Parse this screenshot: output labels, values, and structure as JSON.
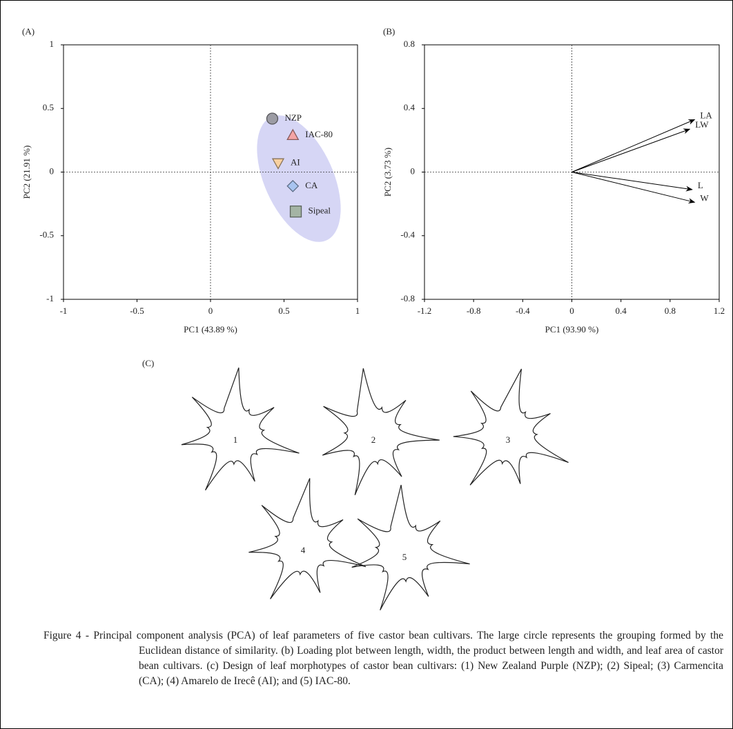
{
  "chart_data": [
    {
      "type": "scatter",
      "panel": "(A)",
      "xlabel": "PC1 (43.89 %)",
      "ylabel": "PC2 (21.91 %)",
      "xlim": [
        -1,
        1
      ],
      "ylim": [
        -1,
        1
      ],
      "xticks": [
        -1,
        -0.5,
        0,
        0.5,
        1
      ],
      "yticks": [
        -1,
        -0.5,
        0,
        0.5,
        1
      ],
      "series": [
        {
          "name": "NZP",
          "color": "#9c9ca4",
          "marker": "circle",
          "x": [
            0.42
          ],
          "y": [
            0.42
          ]
        },
        {
          "name": "IAC-80",
          "color": "#f4a4a4",
          "marker": "triangle",
          "x": [
            0.56
          ],
          "y": [
            0.29
          ]
        },
        {
          "name": "AI",
          "color": "#f8d0a0",
          "marker": "triangle-down",
          "x": [
            0.46
          ],
          "y": [
            0.07
          ]
        },
        {
          "name": "CA",
          "color": "#a8c4f0",
          "marker": "diamond",
          "x": [
            0.56
          ],
          "y": [
            -0.11
          ]
        },
        {
          "name": "Sipeal",
          "color": "#a4b4a4",
          "marker": "square",
          "x": [
            0.58
          ],
          "y": [
            -0.31
          ]
        }
      ]
    },
    {
      "type": "biplot",
      "panel": "(B)",
      "xlabel": "PC1 (93.90 %)",
      "ylabel": "PC2 (3.73 %)",
      "xlim": [
        -1.2,
        1.2
      ],
      "ylim": [
        -0.8,
        0.8
      ],
      "xticks": [
        -1.2,
        -0.8,
        -0.4,
        0,
        0.4,
        0.8,
        1.2
      ],
      "yticks": [
        -0.8,
        -0.4,
        0,
        0.4,
        0.8
      ],
      "color": "#000000",
      "series": [
        {
          "name": "LA",
          "x": [
            1.0
          ],
          "y": [
            0.33
          ]
        },
        {
          "name": "LW",
          "x": [
            0.96
          ],
          "y": [
            0.27
          ]
        },
        {
          "name": "L",
          "x": [
            0.98
          ],
          "y": [
            -0.11
          ]
        },
        {
          "name": "W",
          "x": [
            1.0
          ],
          "y": [
            -0.19
          ]
        }
      ]
    }
  ],
  "panel_c": {
    "label": "(C)",
    "leaves": [
      "1",
      "2",
      "3",
      "4",
      "5"
    ]
  },
  "caption": "Figure 4 - Principal component analysis (PCA) of leaf parameters of five castor bean cultivars. The large circle represents the grouping formed by the Euclidean distance of similarity. (b) Loading plot between length, width, the product between length and width, and leaf area of castor bean cultivars. (c) Design of leaf morphotypes of castor bean cultivars: (1) New Zealand Purple (NZP); (2) Sipeal; (3) Carmencita (CA); (4) Amarelo de Irecê (AI); and (5) IAC-80."
}
